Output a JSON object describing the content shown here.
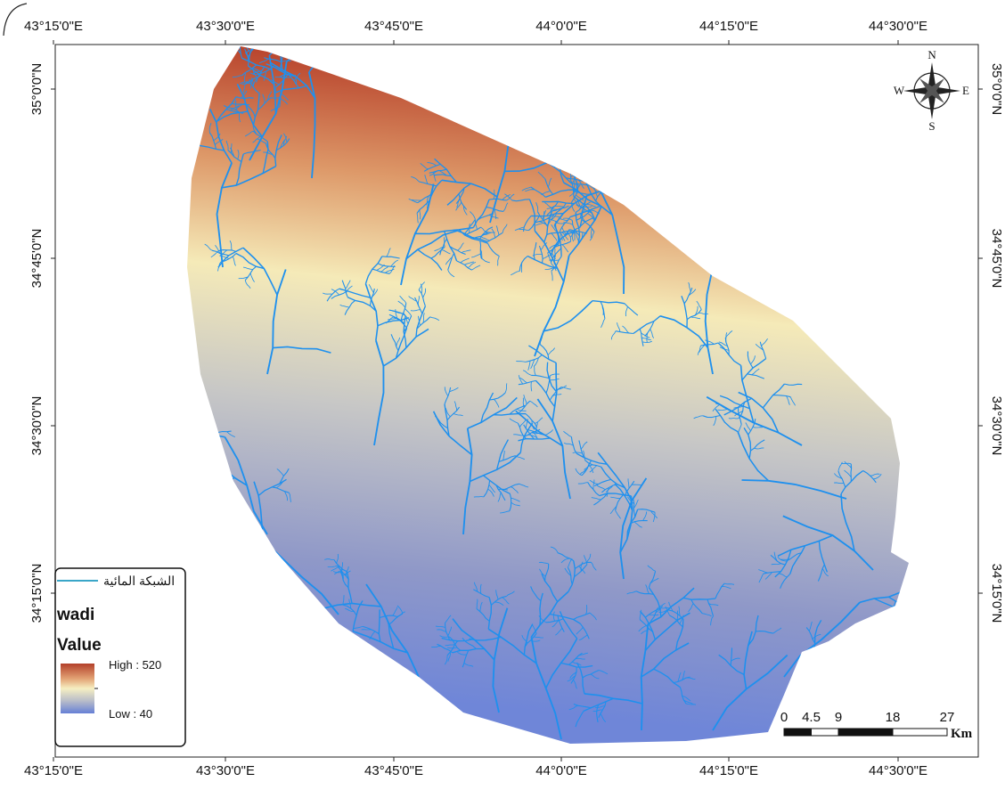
{
  "map": {
    "longitude_labels": [
      "43°15'0\"E",
      "43°30'0\"E",
      "43°45'0\"E",
      "44°0'0\"E",
      "44°15'0\"E",
      "44°30'0\"E"
    ],
    "latitude_labels": [
      "35°0'0\"N",
      "34°45'0\"N",
      "34°30'0\"N",
      "34°15'0\"N"
    ],
    "compass": {
      "north": "N",
      "south": "S",
      "east": "E",
      "west": "W"
    },
    "legend": {
      "network_label": "الشبكة المائية",
      "layer": "wadi",
      "field": "Value",
      "high": "High : 520",
      "low": "Low : 40"
    },
    "scale_bar": {
      "ticks": [
        0,
        4.5,
        9,
        18,
        27
      ],
      "unit": "Km"
    }
  }
}
